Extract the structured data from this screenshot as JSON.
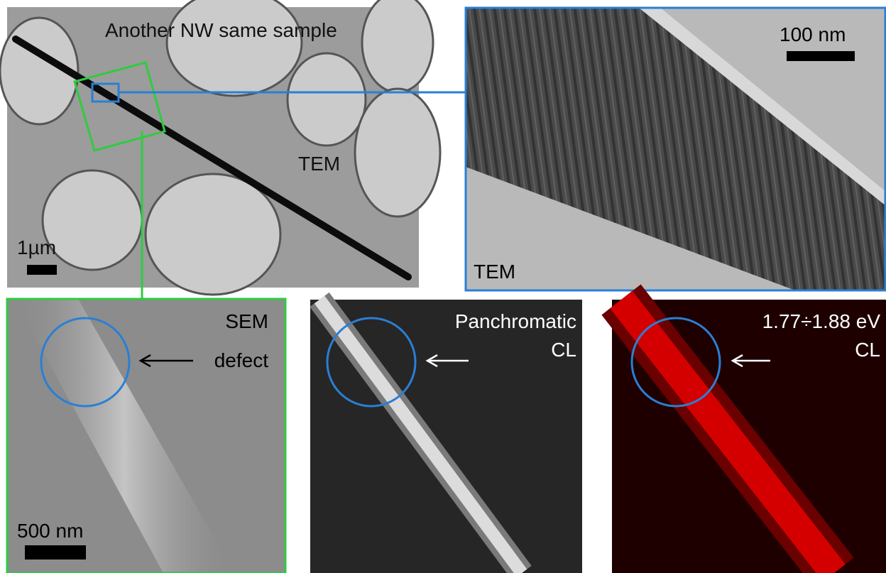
{
  "panels": [
    {
      "title": "Another NW same sample",
      "technique": "TEM",
      "scale": "1µm"
    },
    {
      "scale": "100 nm",
      "technique": "TEM"
    },
    {
      "technique": "SEM",
      "annotation": "defect",
      "scale": "500 nm"
    },
    {
      "title": [
        "Panchromatic",
        "CL"
      ]
    },
    {
      "title": [
        "1.77÷1.88 eV",
        "CL"
      ]
    }
  ]
}
